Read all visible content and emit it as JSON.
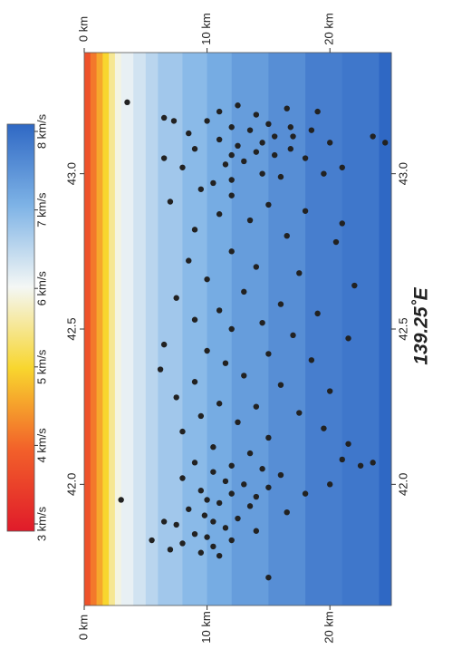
{
  "chart_data": {
    "type": "scatter",
    "title": "139.25˚E",
    "xlim": [
      41.61,
      43.39
    ],
    "xticks": [
      {
        "value": 42,
        "label": "42.0"
      },
      42.5,
      {
        "value": 43,
        "label": "43.0"
      }
    ],
    "ylim": [
      0,
      25
    ],
    "yticks": [
      {
        "value": 0,
        "label": "0 km"
      },
      {
        "value": 10,
        "label": "10 km"
      },
      {
        "value": 20,
        "label": "20 km"
      }
    ],
    "color": "#222222",
    "x": [
      43.23,
      43.18,
      43.17,
      43.2,
      43.22,
      43.19,
      43.21,
      43.2,
      43.17,
      43.15,
      43.14,
      43.16,
      43.12,
      43.14,
      43.1,
      43.11,
      43.08,
      43.09,
      43.07,
      43.06,
      43.08,
      43.05,
      43.04,
      43.03,
      43.02,
      43.0,
      42.99,
      42.98,
      43.0,
      42.97,
      43.13,
      43.1,
      43.06,
      43.12,
      43.15,
      43.05,
      43.02,
      43.12,
      43.1,
      42.95,
      42.93,
      42.91,
      42.9,
      42.88,
      42.87,
      42.85,
      42.84,
      42.82,
      42.8,
      42.78,
      42.75,
      42.72,
      42.7,
      42.68,
      42.66,
      42.64,
      42.62,
      42.6,
      42.58,
      42.56,
      42.55,
      42.53,
      42.52,
      42.5,
      42.48,
      42.47,
      42.45,
      42.43,
      42.42,
      42.4,
      42.39,
      42.37,
      42.35,
      42.33,
      42.32,
      42.3,
      42.28,
      42.26,
      42.25,
      42.23,
      42.22,
      42.2,
      42.18,
      42.17,
      42.15,
      42.13,
      42.12,
      42.1,
      42.07,
      42.06,
      42.05,
      42.04,
      42.03,
      42.02,
      42.01,
      42.0,
      41.99,
      41.98,
      41.97,
      41.96,
      41.95,
      41.94,
      41.93,
      41.92,
      41.91,
      41.9,
      41.89,
      41.88,
      41.87,
      41.86,
      41.85,
      41.84,
      41.83,
      41.82,
      41.81,
      41.8,
      41.79,
      41.78,
      41.77,
      41.82,
      41.95,
      41.7,
      42.0,
      41.97,
      42.08,
      42.06,
      42.07,
      41.88
    ],
    "y": [
      3.5,
      6.5,
      7.3,
      11,
      12.5,
      14,
      16.5,
      19,
      10,
      12,
      13.5,
      15,
      17,
      18.5,
      20,
      11,
      9,
      12.5,
      14,
      15.5,
      16.8,
      18,
      13,
      11.5,
      8,
      14.5,
      16,
      12,
      19.5,
      10.5,
      8.5,
      14.5,
      12,
      15.5,
      16.8,
      6.5,
      21,
      23.5,
      24.5,
      9.5,
      12,
      7,
      15,
      18,
      11,
      13.5,
      21,
      9,
      16.5,
      20.5,
      12,
      8.5,
      14,
      17.5,
      10,
      22,
      13,
      7.5,
      16,
      11,
      19,
      9,
      14.5,
      12,
      17,
      21.5,
      6.5,
      10,
      15,
      18.5,
      11.5,
      6.2,
      13,
      9,
      16,
      20,
      7.5,
      11,
      14,
      17.5,
      9.5,
      12.5,
      19.5,
      8,
      15,
      21.5,
      10.5,
      13.5,
      9,
      12,
      14.5,
      10.5,
      16,
      8,
      11.5,
      13,
      15,
      9.5,
      12,
      14,
      10,
      11,
      13.5,
      8.5,
      16.5,
      9.8,
      12.5,
      10.5,
      7.5,
      11.5,
      14,
      9,
      10,
      12,
      8,
      10.5,
      7,
      9.5,
      11,
      5.5,
      3,
      15,
      20,
      18,
      21,
      22.5,
      23.5,
      6.5
    ],
    "velocity_depths": [
      0,
      0.5,
      1,
      1.5,
      2,
      2.5,
      3,
      4,
      5,
      6,
      8,
      10,
      12,
      15,
      18,
      21,
      24
    ],
    "velocities": [
      3.8,
      4.2,
      4.6,
      5.0,
      5.5,
      5.9,
      6.1,
      6.3,
      6.5,
      6.7,
      6.9,
      7.1,
      7.3,
      7.5,
      7.7,
      7.8,
      8.0
    ],
    "colorscale": [
      {
        "value": 3,
        "color": "#e01b2a"
      },
      {
        "value": 4,
        "color": "#f2602a"
      },
      {
        "value": 5,
        "color": "#f8d62e"
      },
      {
        "value": 6,
        "color": "#f4f7f5"
      },
      {
        "value": 7,
        "color": "#7eb3e6"
      },
      {
        "value": 8,
        "color": "#2f68c4"
      }
    ],
    "colorbar_ticks": [
      {
        "value": 3,
        "label": "3 km/s"
      },
      {
        "value": 4,
        "label": "4 km/s"
      },
      {
        "value": 5,
        "label": "5 km/s"
      },
      {
        "value": 6,
        "label": "6 km/s"
      },
      {
        "value": 7,
        "label": "7 km/s"
      },
      {
        "value": 8,
        "label": "8 km/s"
      }
    ]
  }
}
